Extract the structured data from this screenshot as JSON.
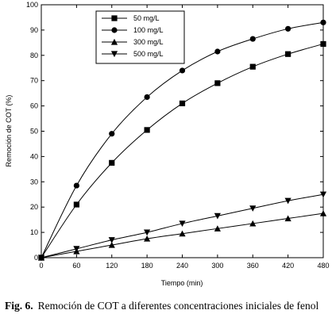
{
  "chart_data": {
    "type": "line",
    "xlabel": "Tiempo (min)",
    "ylabel": "Remoción de COT (%)",
    "xlim": [
      0,
      480
    ],
    "ylim": [
      0,
      100
    ],
    "xticks": [
      0,
      60,
      120,
      180,
      240,
      300,
      360,
      420,
      480
    ],
    "yticks": [
      0,
      10,
      20,
      30,
      40,
      50,
      60,
      70,
      80,
      90,
      100
    ],
    "grid": false,
    "legend_position": "top-left",
    "x": [
      0,
      60,
      120,
      180,
      240,
      300,
      360,
      420,
      480
    ],
    "series": [
      {
        "name": "50 mg/L",
        "marker": "square",
        "values": [
          0,
          21,
          37.5,
          50.5,
          61,
          69,
          75.5,
          80.5,
          84.5
        ]
      },
      {
        "name": "100 mg/L",
        "marker": "circle",
        "values": [
          0,
          28.5,
          49,
          63.5,
          74,
          81.5,
          86.5,
          90.5,
          93
        ]
      },
      {
        "name": "300 mg/L",
        "marker": "triangle-up",
        "values": [
          0,
          2.5,
          5,
          7.5,
          9.5,
          11.5,
          13.5,
          15.5,
          17.5
        ]
      },
      {
        "name": "500 mg/L",
        "marker": "triangle-down",
        "values": [
          0,
          3.5,
          7,
          10,
          13.5,
          16.5,
          19.5,
          22.5,
          25
        ]
      }
    ]
  },
  "caption": {
    "label": "Fig. 6.",
    "text": "Remoción de COT a diferentes concentraciones iniciales de fenol"
  }
}
